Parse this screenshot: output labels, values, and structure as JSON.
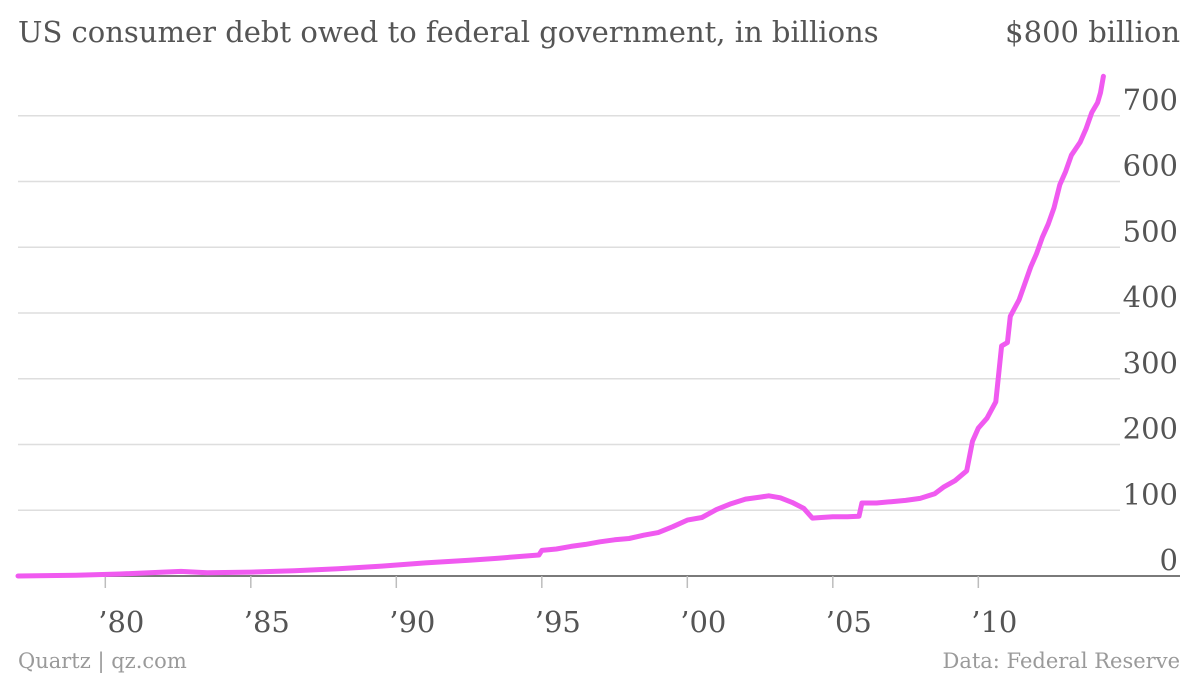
{
  "header": {
    "title": "US consumer debt owed to federal government, in billions",
    "unit_label": "$800 billion"
  },
  "footer": {
    "source_left": "Quartz | qz.com",
    "source_right": "Data: Federal Reserve"
  },
  "colors": {
    "line": "#f05af0",
    "grid": "#dedede",
    "text": "#555555",
    "footer": "#9a9a9a"
  },
  "chart_data": {
    "type": "line",
    "title": "US consumer debt owed to federal government, in billions",
    "xlabel": "",
    "ylabel": "",
    "ylim": [
      0,
      800
    ],
    "xlim": [
      1977,
      2014.8
    ],
    "y_ticks": [
      0,
      100,
      200,
      300,
      400,
      500,
      600,
      700
    ],
    "y_tick_labels": [
      "0",
      "100",
      "200",
      "300",
      "400",
      "500",
      "600",
      "700"
    ],
    "x_ticks": [
      1980,
      1985,
      1990,
      1995,
      2000,
      2005,
      2010
    ],
    "x_tick_labels": [
      "’80",
      "’85",
      "’90",
      "’95",
      "’00",
      "’05",
      "’10"
    ],
    "grid": true,
    "series": [
      {
        "values": [
          [
            1977.0,
            0
          ],
          [
            1979.0,
            1
          ],
          [
            1980.5,
            3
          ],
          [
            1982.0,
            6
          ],
          [
            1982.6,
            7
          ],
          [
            1983.5,
            5
          ],
          [
            1985.0,
            6
          ],
          [
            1986.5,
            8
          ],
          [
            1988.0,
            11
          ],
          [
            1989.5,
            15
          ],
          [
            1991.0,
            20
          ],
          [
            1992.5,
            24
          ],
          [
            1993.5,
            27
          ],
          [
            1994.9,
            32
          ],
          [
            1995.0,
            39
          ],
          [
            1995.5,
            41
          ],
          [
            1996.0,
            45
          ],
          [
            1996.5,
            48
          ],
          [
            1997.0,
            52
          ],
          [
            1997.5,
            55
          ],
          [
            1998.0,
            57
          ],
          [
            1998.5,
            62
          ],
          [
            1999.0,
            66
          ],
          [
            1999.5,
            75
          ],
          [
            2000.0,
            85
          ],
          [
            2000.5,
            89
          ],
          [
            2001.0,
            101
          ],
          [
            2001.5,
            110
          ],
          [
            2002.0,
            117
          ],
          [
            2002.5,
            120
          ],
          [
            2002.8,
            122
          ],
          [
            2003.2,
            119
          ],
          [
            2003.6,
            112
          ],
          [
            2004.0,
            103
          ],
          [
            2004.3,
            88
          ],
          [
            2004.6,
            89
          ],
          [
            2005.0,
            90
          ],
          [
            2005.5,
            90
          ],
          [
            2005.9,
            91
          ],
          [
            2006.0,
            111
          ],
          [
            2006.5,
            111
          ],
          [
            2007.0,
            113
          ],
          [
            2007.5,
            115
          ],
          [
            2008.0,
            118
          ],
          [
            2008.5,
            125
          ],
          [
            2008.8,
            135
          ],
          [
            2009.2,
            145
          ],
          [
            2009.6,
            160
          ],
          [
            2009.8,
            205
          ],
          [
            2010.0,
            225
          ],
          [
            2010.3,
            240
          ],
          [
            2010.6,
            265
          ],
          [
            2010.8,
            350
          ],
          [
            2011.0,
            355
          ],
          [
            2011.1,
            395
          ],
          [
            2011.4,
            420
          ],
          [
            2011.6,
            445
          ],
          [
            2011.8,
            470
          ],
          [
            2012.0,
            490
          ],
          [
            2012.2,
            515
          ],
          [
            2012.4,
            535
          ],
          [
            2012.6,
            560
          ],
          [
            2012.8,
            595
          ],
          [
            2013.0,
            615
          ],
          [
            2013.2,
            640
          ],
          [
            2013.5,
            660
          ],
          [
            2013.7,
            680
          ],
          [
            2013.9,
            705
          ],
          [
            2014.1,
            720
          ],
          [
            2014.2,
            735
          ],
          [
            2014.3,
            760
          ]
        ]
      }
    ]
  }
}
